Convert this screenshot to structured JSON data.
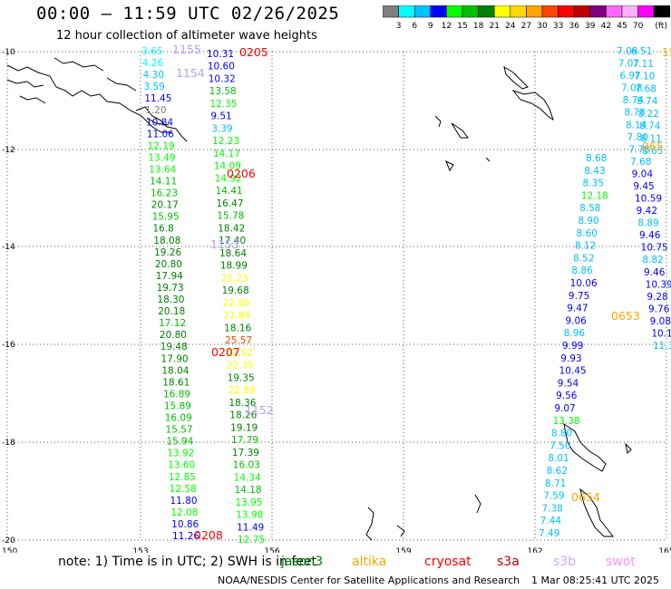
{
  "header": {
    "title": "00:00 — 11:59 UTC 02/26/2025",
    "subtitle": "12 hour collection of altimeter wave heights"
  },
  "colorbar": {
    "unit": "(ft)",
    "colors": [
      "#808080",
      "#00ffff",
      "#00c0ff",
      "#0000ff",
      "#00ff00",
      "#00c000",
      "#008000",
      "#ffff00",
      "#ffd700",
      "#ffa500",
      "#ff4500",
      "#ff0000",
      "#c00000",
      "#800080",
      "#ff66ff",
      "#ffb0ff",
      "#ff00ff",
      "#000000"
    ],
    "labels": [
      "3",
      "6",
      "9",
      "12",
      "15",
      "18",
      "21",
      "24",
      "27",
      "30",
      "33",
      "36",
      "39",
      "42",
      "45",
      "70"
    ]
  },
  "map": {
    "lat_ticks": [
      "-10",
      "-12",
      "-14",
      "-16",
      "-18",
      "-20"
    ],
    "lon_ticks": [
      "150",
      "153",
      "156",
      "159",
      "162",
      "165"
    ]
  },
  "track_labels": [
    {
      "text": "0205",
      "color": "#ff0000"
    },
    {
      "text": "1155",
      "color": "#b0a0ff"
    },
    {
      "text": "1154",
      "color": "#b0a0ff"
    },
    {
      "text": "0206",
      "color": "#ff0000"
    },
    {
      "text": "1153",
      "color": "#b0a0ff"
    },
    {
      "text": "0207",
      "color": "#ff0000"
    },
    {
      "text": "1152",
      "color": "#b0a0ff"
    },
    {
      "text": "0208",
      "color": "#ff0000"
    },
    {
      "text": "0653",
      "color": "#ffa500"
    },
    {
      "text": "0654",
      "color": "#ffa500"
    },
    {
      "text": "065",
      "color": "#ffa500"
    },
    {
      "text": "151",
      "color": "#ffa500"
    }
  ],
  "obs_track_a": [
    [
      "3.65",
      "#00ffff"
    ],
    [
      "4.26",
      "#00ffff"
    ],
    [
      "4.30",
      "#00c0ff"
    ],
    [
      "3.59",
      "#00c0ff"
    ],
    [
      "11.45",
      "#0000ff"
    ],
    [
      "1.20",
      "#808080"
    ],
    [
      "10.84",
      "#0000ff"
    ],
    [
      "11.06",
      "#0000ff"
    ],
    [
      "12.19",
      "#00ff00"
    ],
    [
      "13.49",
      "#00ff00"
    ],
    [
      "13.64",
      "#00ff00"
    ],
    [
      "14.11",
      "#00c000"
    ],
    [
      "16.23",
      "#00c000"
    ],
    [
      "20.17",
      "#008000"
    ],
    [
      "15.95",
      "#00c000"
    ],
    [
      "16.8",
      "#008000"
    ],
    [
      "18.08",
      "#008000"
    ],
    [
      "19.26",
      "#008000"
    ],
    [
      "20.80",
      "#008000"
    ],
    [
      "17.94",
      "#008000"
    ],
    [
      "19.73",
      "#008000"
    ],
    [
      "18.30",
      "#008000"
    ],
    [
      "20.18",
      "#008000"
    ],
    [
      "17.12",
      "#00c000"
    ],
    [
      "20.80",
      "#008000"
    ],
    [
      "19.48",
      "#008000"
    ],
    [
      "17.90",
      "#008000"
    ],
    [
      "18.04",
      "#008000"
    ],
    [
      "18.61",
      "#008000"
    ],
    [
      "16.89",
      "#00c000"
    ],
    [
      "15.89",
      "#00c000"
    ],
    [
      "16.09",
      "#00c000"
    ],
    [
      "15.57",
      "#00c000"
    ],
    [
      "15.94",
      "#00c000"
    ],
    [
      "13.92",
      "#00ff00"
    ],
    [
      "13.60",
      "#00ff00"
    ],
    [
      "12.85",
      "#00ff00"
    ],
    [
      "12.58",
      "#00ff00"
    ],
    [
      "11.80",
      "#0000ff"
    ],
    [
      "12.08",
      "#00ff00"
    ],
    [
      "10.86",
      "#0000ff"
    ],
    [
      "11.26",
      "#0000ff"
    ]
  ],
  "obs_track_b": [
    [
      "10.31",
      "#0000ff"
    ],
    [
      "10.60",
      "#0000ff"
    ],
    [
      "10.32",
      "#0000ff"
    ],
    [
      "13.58",
      "#00c000"
    ],
    [
      "12.35",
      "#00ff00"
    ],
    [
      "9.51",
      "#0000ff"
    ],
    [
      "3.39",
      "#00c0ff"
    ],
    [
      "12.23",
      "#00ff00"
    ],
    [
      "14.17",
      "#00ff00"
    ],
    [
      "14.09",
      "#00ff00"
    ],
    [
      "14.92",
      "#00ff00"
    ],
    [
      "14.41",
      "#00c000"
    ],
    [
      "16.47",
      "#008000"
    ],
    [
      "15.78",
      "#00c000"
    ],
    [
      "18.42",
      "#008000"
    ],
    [
      "17.40",
      "#008000"
    ],
    [
      "18.64",
      "#008000"
    ],
    [
      "18.99",
      "#008000"
    ],
    [
      "21.23",
      "#ffff00"
    ],
    [
      "19.68",
      "#008000"
    ],
    [
      "22.80",
      "#ffff00"
    ],
    [
      "21.84",
      "#ffff00"
    ],
    [
      "18.16",
      "#008000"
    ],
    [
      "25.57",
      "#ff4500"
    ],
    [
      "21.52",
      "#ffff00"
    ],
    [
      "22.35",
      "#ffff00"
    ],
    [
      "19.35",
      "#008000"
    ],
    [
      "22.89",
      "#ffff00"
    ],
    [
      "18.36",
      "#008000"
    ],
    [
      "18.26",
      "#008000"
    ],
    [
      "19.19",
      "#008000"
    ],
    [
      "17.79",
      "#00c000"
    ],
    [
      "17.39",
      "#008000"
    ],
    [
      "16.03",
      "#00c000"
    ],
    [
      "14.34",
      "#00ff00"
    ],
    [
      "14.18",
      "#00c000"
    ],
    [
      "13.95",
      "#00ff00"
    ],
    [
      "13.98",
      "#00ff00"
    ],
    [
      "11.49",
      "#0000ff"
    ],
    [
      "12.75",
      "#00ff00"
    ]
  ],
  "obs_track_c": [
    [
      "8.68",
      "#00c0ff"
    ],
    [
      "8.43",
      "#00c0ff"
    ],
    [
      "8.35",
      "#00c0ff"
    ],
    [
      "12.18",
      "#00ff00"
    ],
    [
      "8.58",
      "#00c0ff"
    ],
    [
      "8.90",
      "#00c0ff"
    ],
    [
      "8.60",
      "#00c0ff"
    ],
    [
      "8.12",
      "#00c0ff"
    ],
    [
      "8.52",
      "#00c0ff"
    ],
    [
      "8.86",
      "#00c0ff"
    ],
    [
      "10.06",
      "#0000ff"
    ],
    [
      "9.75",
      "#0000ff"
    ],
    [
      "9.47",
      "#0000ff"
    ],
    [
      "9.06",
      "#0000ff"
    ],
    [
      "8.96",
      "#00c0ff"
    ],
    [
      "9.99",
      "#0000ff"
    ],
    [
      "9.93",
      "#0000ff"
    ],
    [
      "10.45",
      "#0000ff"
    ],
    [
      "9.54",
      "#0000ff"
    ],
    [
      "9.56",
      "#0000ff"
    ],
    [
      "9.07",
      "#0000ff"
    ],
    [
      "13.38",
      "#00ff00"
    ],
    [
      "8.80",
      "#00c0ff"
    ],
    [
      "7.50",
      "#00c0ff"
    ],
    [
      "8.01",
      "#00c0ff"
    ],
    [
      "8.62",
      "#00c0ff"
    ],
    [
      "8.71",
      "#00c0ff"
    ],
    [
      "7.59",
      "#00c0ff"
    ],
    [
      "7.38",
      "#00c0ff"
    ],
    [
      "7.44",
      "#00c0ff"
    ],
    [
      "7.49",
      "#00c0ff"
    ]
  ],
  "obs_track_d": [
    [
      "7.08",
      "#00c0ff"
    ],
    [
      "7.07",
      "#00c0ff"
    ],
    [
      "6.97",
      "#00c0ff"
    ],
    [
      "7.08",
      "#00c0ff"
    ],
    [
      "8.74",
      "#00c0ff"
    ],
    [
      "8.78",
      "#00c0ff"
    ],
    [
      "8.14",
      "#00c0ff"
    ],
    [
      "7.80",
      "#00c0ff"
    ],
    [
      "7.78",
      "#00c0ff"
    ],
    [
      "7.68",
      "#00c0ff"
    ],
    [
      "9.04",
      "#0000ff"
    ],
    [
      "9.45",
      "#0000ff"
    ],
    [
      "10.59",
      "#0000ff"
    ],
    [
      "9.42",
      "#0000ff"
    ],
    [
      "8.89",
      "#00c0ff"
    ],
    [
      "9.46",
      "#0000ff"
    ],
    [
      "10.75",
      "#0000ff"
    ],
    [
      "8.82",
      "#00c0ff"
    ],
    [
      "9.46",
      "#0000ff"
    ],
    [
      "10.39",
      "#0000ff"
    ],
    [
      "9.28",
      "#0000ff"
    ],
    [
      "9.76",
      "#0000ff"
    ],
    [
      "9.08",
      "#0000ff"
    ],
    [
      "10.1",
      "#0000ff"
    ],
    [
      "11.3",
      "#00c0ff"
    ]
  ],
  "obs_track_e": [
    [
      "6.51",
      "#00c0ff"
    ],
    [
      "7.11",
      "#00c0ff"
    ],
    [
      "7.10",
      "#00c0ff"
    ],
    [
      "7.68",
      "#00c0ff"
    ],
    [
      "8.74",
      "#00c0ff"
    ],
    [
      "8.22",
      "#00c0ff"
    ],
    [
      "8.74",
      "#00c0ff"
    ],
    [
      "8.11",
      "#00c0ff"
    ],
    [
      "8.65",
      "#00c0ff"
    ]
  ],
  "notes": {
    "main": "note: 1) Time is in UTC; 2) SWH is in feet",
    "legend": [
      {
        "name": "jason3",
        "color": "#008000"
      },
      {
        "name": "altika",
        "color": "#ffa500"
      },
      {
        "name": "cryosat",
        "color": "#ff0000"
      },
      {
        "name": "s3a",
        "color": "#c00000"
      },
      {
        "name": "s3b",
        "color": "#c8a8ff"
      },
      {
        "name": "swot",
        "color": "#ff90ff"
      }
    ],
    "credit": "NOAA/NESDIS Center for Satellite Applications and Research",
    "timestamp": "1 Mar 08:25:41 UTC 2025"
  }
}
